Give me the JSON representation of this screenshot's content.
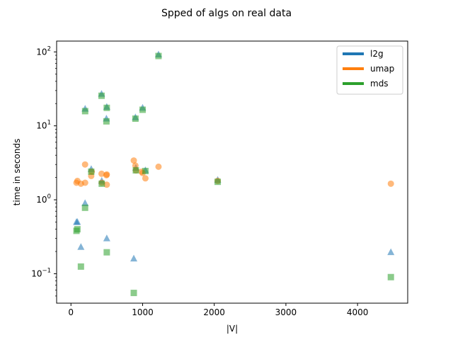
{
  "chart_data": {
    "type": "scatter",
    "title": "Spped of algs on real data",
    "xlabel": "|V|",
    "ylabel": "time in seconds",
    "xlim": [
      -200,
      4700
    ],
    "ylim": [
      0.04,
      140
    ],
    "yscale": "log",
    "grid": false,
    "legend_position": "top-right",
    "x_ticks": [
      0,
      1000,
      2000,
      3000,
      4000
    ],
    "x_tick_labels": [
      "0",
      "1000",
      "2000",
      "3000",
      "4000"
    ],
    "y_ticks": [
      0.1,
      1,
      10,
      100
    ],
    "y_tick_labels": [
      "10",
      "10",
      "10",
      "10"
    ],
    "y_tick_exponents": [
      "−1",
      "0",
      "1",
      "2"
    ],
    "series": [
      {
        "name": "l2g",
        "color": "#1f77b4",
        "marker": "triangle",
        "points": [
          {
            "x": 77,
            "y": 0.5
          },
          {
            "x": 90,
            "y": 0.5
          },
          {
            "x": 139,
            "y": 0.23
          },
          {
            "x": 197,
            "y": 0.9
          },
          {
            "x": 198,
            "y": 17
          },
          {
            "x": 283,
            "y": 2.6
          },
          {
            "x": 427,
            "y": 27
          },
          {
            "x": 430,
            "y": 1.8
          },
          {
            "x": 495,
            "y": 12.5
          },
          {
            "x": 500,
            "y": 18
          },
          {
            "x": 500,
            "y": 0.3
          },
          {
            "x": 877,
            "y": 0.16
          },
          {
            "x": 900,
            "y": 13
          },
          {
            "x": 906,
            "y": 2.7
          },
          {
            "x": 1000,
            "y": 17.5
          },
          {
            "x": 1039,
            "y": 2.5
          },
          {
            "x": 1222,
            "y": 92
          },
          {
            "x": 2048,
            "y": 1.85
          },
          {
            "x": 4465,
            "y": 0.195
          }
        ]
      },
      {
        "name": "umap",
        "color": "#ff7f0e",
        "marker": "circle",
        "points": [
          {
            "x": 77,
            "y": 1.7
          },
          {
            "x": 90,
            "y": 1.8
          },
          {
            "x": 139,
            "y": 1.65
          },
          {
            "x": 197,
            "y": 3.0
          },
          {
            "x": 198,
            "y": 1.7
          },
          {
            "x": 283,
            "y": 2.1
          },
          {
            "x": 290,
            "y": 2.4
          },
          {
            "x": 427,
            "y": 2.25
          },
          {
            "x": 430,
            "y": 1.7
          },
          {
            "x": 495,
            "y": 2.15
          },
          {
            "x": 500,
            "y": 2.2
          },
          {
            "x": 500,
            "y": 1.6
          },
          {
            "x": 877,
            "y": 3.4
          },
          {
            "x": 900,
            "y": 2.9
          },
          {
            "x": 906,
            "y": 2.5
          },
          {
            "x": 985,
            "y": 2.4
          },
          {
            "x": 1000,
            "y": 2.3
          },
          {
            "x": 1039,
            "y": 1.95
          },
          {
            "x": 1222,
            "y": 2.8
          },
          {
            "x": 2048,
            "y": 1.8
          },
          {
            "x": 4465,
            "y": 1.65
          }
        ]
      },
      {
        "name": "mds",
        "color": "#2ca02c",
        "marker": "square",
        "points": [
          {
            "x": 77,
            "y": 0.38
          },
          {
            "x": 90,
            "y": 0.4
          },
          {
            "x": 139,
            "y": 0.125
          },
          {
            "x": 197,
            "y": 0.78
          },
          {
            "x": 198,
            "y": 15.8
          },
          {
            "x": 283,
            "y": 2.4
          },
          {
            "x": 427,
            "y": 25.5
          },
          {
            "x": 430,
            "y": 1.65
          },
          {
            "x": 495,
            "y": 11.5
          },
          {
            "x": 500,
            "y": 17.5
          },
          {
            "x": 500,
            "y": 0.195
          },
          {
            "x": 877,
            "y": 0.055
          },
          {
            "x": 900,
            "y": 12.5
          },
          {
            "x": 906,
            "y": 2.5
          },
          {
            "x": 1000,
            "y": 16.5
          },
          {
            "x": 1039,
            "y": 2.45
          },
          {
            "x": 1222,
            "y": 88
          },
          {
            "x": 2048,
            "y": 1.75
          },
          {
            "x": 4465,
            "y": 0.09
          }
        ]
      }
    ]
  }
}
